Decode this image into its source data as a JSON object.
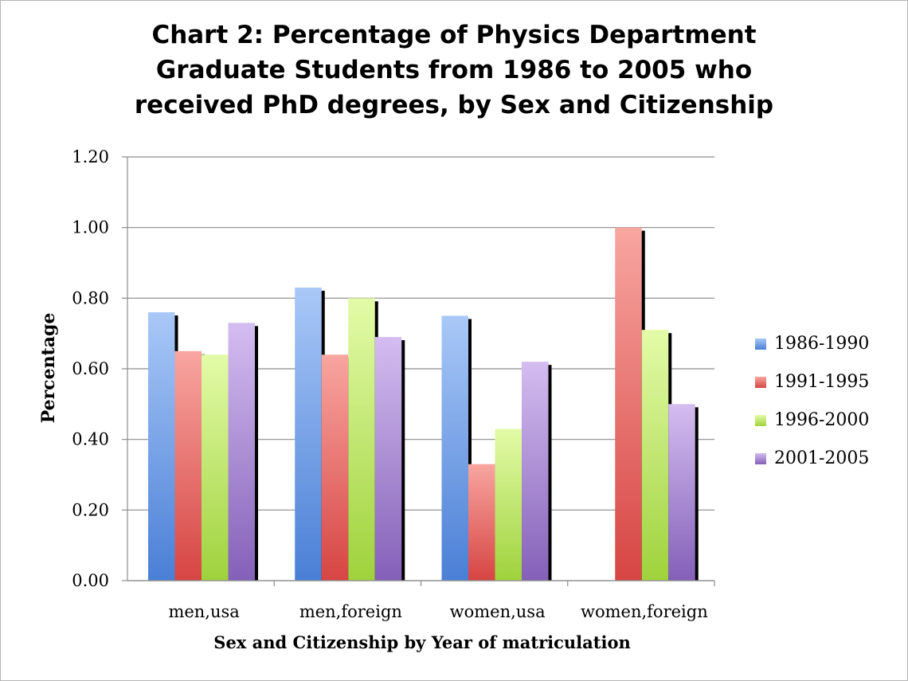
{
  "title_lines": [
    "Chart 2: Percentage of Physics Department",
    "Graduate Students from 1986 to 2005 who",
    "received PhD degrees, by Sex and Citizenship"
  ],
  "chart_data": {
    "type": "bar",
    "title": "Chart 2: Percentage of Physics Department Graduate Students from 1986 to 2005 who received PhD degrees, by Sex and Citizenship",
    "xlabel": "Sex and Citizenship by Year of matriculation",
    "ylabel": "Percentage",
    "ylim": [
      0,
      1.2
    ],
    "yticks": [
      "0.00",
      "0.20",
      "0.40",
      "0.60",
      "0.80",
      "1.00",
      "1.20"
    ],
    "grid": true,
    "legend_position": "right",
    "categories": [
      "men,usa",
      "men,foreign",
      "women,usa",
      "women,foreign"
    ],
    "series": [
      {
        "name": "1986-1990",
        "values": [
          0.76,
          0.83,
          0.75,
          null
        ],
        "color": "#4a7fd6",
        "color_light": "#a9c8f7"
      },
      {
        "name": "1991-1995",
        "values": [
          0.65,
          0.64,
          0.33,
          1.0
        ],
        "color": "#d64543",
        "color_light": "#f8a5a0"
      },
      {
        "name": "1996-2000",
        "values": [
          0.64,
          0.8,
          0.43,
          0.71
        ],
        "color": "#9fd23c",
        "color_light": "#e3fba8"
      },
      {
        "name": "2001-2005",
        "values": [
          0.73,
          0.69,
          0.62,
          0.5
        ],
        "color": "#8460b8",
        "color_light": "#d4bdf0"
      }
    ]
  }
}
